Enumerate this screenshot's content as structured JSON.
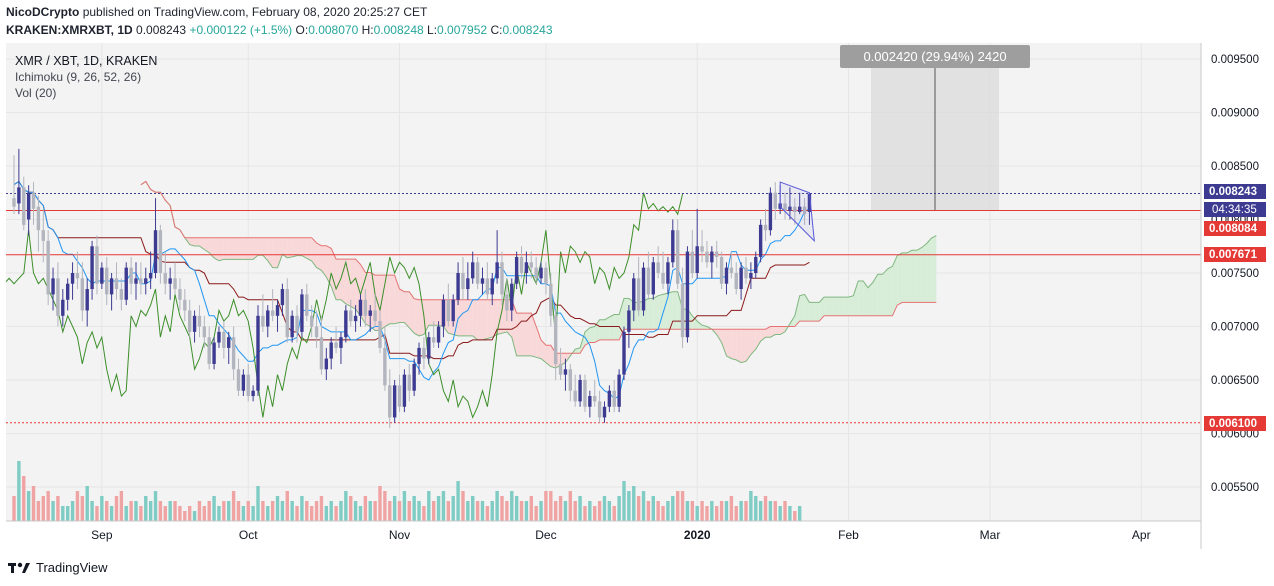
{
  "header": {
    "author": "NicoDCrypto",
    "published": "published on TradingView.com, February 08, 2020 20:25:27 CET",
    "symbol": "KRAKEN:XMRXBT, 1D",
    "last": "0.008243",
    "change": "+0.000122 (+1.5%)",
    "o_label": "O:",
    "o": "0.008070",
    "h_label": "H:",
    "h": "0.008248",
    "l_label": "L:",
    "l": "0.007952",
    "c_label": "C:",
    "c": "0.008243"
  },
  "legend": {
    "pair": "XMR / XBT, 1D, KRAKEN",
    "ichimoku": "Ichimoku (9, 26, 52, 26)",
    "vol": "Vol (20)"
  },
  "measure": {
    "label": "0.002420 (29.94%) 2420"
  },
  "price_labels": {
    "last": "0.008243",
    "countdown": "04:34:35",
    "level1": "0.008084",
    "level2": "0.007671",
    "level3": "0.006100"
  },
  "footer": {
    "brand": "TradingView"
  },
  "colors": {
    "up": "#3d3b91",
    "down": "#b2b5be",
    "vol_up": "#7fccc4",
    "vol_down": "#f0a3a3",
    "cloud_green": "#d8edd8",
    "cloud_red": "#f8d8d8",
    "level": "#e53935",
    "conv": "#2196f3",
    "base": "#8b1a1a",
    "lag": "#3c8e2a"
  },
  "chart_data": {
    "type": "candlestick",
    "title": "XMR / XBT, 1D, KRAKEN",
    "x_ticks": [
      "Sep",
      "Oct",
      "Nov",
      "Dec",
      "2020",
      "Feb",
      "Mar",
      "Apr"
    ],
    "y_ticks": [
      "0.009500",
      "0.009000",
      "0.008500",
      "0.008000",
      "0.007500",
      "0.007000",
      "0.006500",
      "0.006000",
      "0.005500"
    ],
    "ylim": [
      0.0052,
      0.0098
    ],
    "start_date": "2019-08-14",
    "candles": [
      [
        0.0082,
        0.0086,
        0.00805,
        0.00812
      ],
      [
        0.00815,
        0.00866,
        0.00805,
        0.0083
      ],
      [
        0.0083,
        0.0084,
        0.0079,
        0.00795
      ],
      [
        0.008,
        0.00832,
        0.00785,
        0.00825
      ],
      [
        0.00825,
        0.00835,
        0.00795,
        0.0081
      ],
      [
        0.00812,
        0.00822,
        0.0077,
        0.0079
      ],
      [
        0.0079,
        0.0081,
        0.0076,
        0.0078
      ],
      [
        0.0078,
        0.0079,
        0.0072,
        0.0073
      ],
      [
        0.0073,
        0.00755,
        0.00715,
        0.00745
      ],
      [
        0.00745,
        0.0076,
        0.007,
        0.0071
      ],
      [
        0.0071,
        0.00735,
        0.007,
        0.00725
      ],
      [
        0.00725,
        0.00745,
        0.00715,
        0.0074
      ],
      [
        0.0074,
        0.0076,
        0.00725,
        0.0075
      ],
      [
        0.0075,
        0.0077,
        0.00735,
        0.00745
      ],
      [
        0.00745,
        0.0076,
        0.00705,
        0.00715
      ],
      [
        0.00715,
        0.00745,
        0.007,
        0.00735
      ],
      [
        0.00735,
        0.0078,
        0.00725,
        0.00775
      ],
      [
        0.00775,
        0.00785,
        0.0073,
        0.0074
      ],
      [
        0.0074,
        0.0076,
        0.00735,
        0.00755
      ],
      [
        0.00755,
        0.00765,
        0.0072,
        0.0073
      ],
      [
        0.0073,
        0.0075,
        0.00715,
        0.00745
      ],
      [
        0.00745,
        0.0076,
        0.00725,
        0.00735
      ],
      [
        0.00735,
        0.00745,
        0.00715,
        0.00725
      ],
      [
        0.00725,
        0.0076,
        0.0072,
        0.00755
      ],
      [
        0.00755,
        0.00765,
        0.0073,
        0.0074
      ],
      [
        0.0074,
        0.0076,
        0.00725,
        0.00745
      ],
      [
        0.00745,
        0.0076,
        0.0073,
        0.0074
      ],
      [
        0.0074,
        0.00755,
        0.0073,
        0.00745
      ],
      [
        0.00745,
        0.0077,
        0.00735,
        0.0075
      ],
      [
        0.0075,
        0.0082,
        0.00745,
        0.0079
      ],
      [
        0.0079,
        0.00795,
        0.0074,
        0.0075
      ],
      [
        0.0075,
        0.0077,
        0.0073,
        0.0074
      ],
      [
        0.0074,
        0.00755,
        0.00725,
        0.00745
      ],
      [
        0.00745,
        0.0076,
        0.0073,
        0.00735
      ],
      [
        0.00735,
        0.00745,
        0.00715,
        0.00725
      ],
      [
        0.00725,
        0.00735,
        0.00705,
        0.00715
      ],
      [
        0.00715,
        0.00725,
        0.0069,
        0.00695
      ],
      [
        0.00695,
        0.00715,
        0.00685,
        0.0071
      ],
      [
        0.0071,
        0.0072,
        0.0069,
        0.007
      ],
      [
        0.007,
        0.0071,
        0.0068,
        0.0069
      ],
      [
        0.0069,
        0.007,
        0.0066,
        0.00665
      ],
      [
        0.00665,
        0.0069,
        0.0066,
        0.00685
      ],
      [
        0.00685,
        0.007,
        0.0068,
        0.00695
      ],
      [
        0.00695,
        0.00705,
        0.0067,
        0.0068
      ],
      [
        0.0068,
        0.00695,
        0.00665,
        0.0069
      ],
      [
        0.0069,
        0.007,
        0.0065,
        0.0066
      ],
      [
        0.0066,
        0.0067,
        0.00635,
        0.0064
      ],
      [
        0.0064,
        0.0066,
        0.00635,
        0.00655
      ],
      [
        0.00655,
        0.00665,
        0.0063,
        0.00635
      ],
      [
        0.00635,
        0.00645,
        0.0063,
        0.0064
      ],
      [
        0.0064,
        0.0072,
        0.00635,
        0.0071
      ],
      [
        0.0071,
        0.0073,
        0.00695,
        0.007
      ],
      [
        0.007,
        0.0072,
        0.0069,
        0.00715
      ],
      [
        0.00715,
        0.00735,
        0.00705,
        0.0071
      ],
      [
        0.0071,
        0.00725,
        0.00695,
        0.0072
      ],
      [
        0.0072,
        0.0074,
        0.0071,
        0.00735
      ],
      [
        0.00735,
        0.00745,
        0.00685,
        0.0069
      ],
      [
        0.0069,
        0.00715,
        0.00685,
        0.0071
      ],
      [
        0.0071,
        0.0072,
        0.00685,
        0.00695
      ],
      [
        0.00695,
        0.00735,
        0.0069,
        0.0073
      ],
      [
        0.0073,
        0.0074,
        0.00705,
        0.0071
      ],
      [
        0.0071,
        0.0072,
        0.0069,
        0.007
      ],
      [
        0.007,
        0.00715,
        0.0068,
        0.0069
      ],
      [
        0.0069,
        0.0071,
        0.00655,
        0.0066
      ],
      [
        0.0066,
        0.0068,
        0.0065,
        0.0067
      ],
      [
        0.0067,
        0.0069,
        0.0066,
        0.00685
      ],
      [
        0.00685,
        0.007,
        0.00675,
        0.0068
      ],
      [
        0.0068,
        0.00695,
        0.00665,
        0.0069
      ],
      [
        0.0069,
        0.0072,
        0.00685,
        0.00715
      ],
      [
        0.00715,
        0.00725,
        0.007,
        0.00705
      ],
      [
        0.00705,
        0.0072,
        0.00695,
        0.0071
      ],
      [
        0.0071,
        0.0073,
        0.007,
        0.00725
      ],
      [
        0.00725,
        0.00735,
        0.007,
        0.0071
      ],
      [
        0.0071,
        0.0072,
        0.00695,
        0.00715
      ],
      [
        0.00715,
        0.0073,
        0.007,
        0.00705
      ],
      [
        0.00705,
        0.00715,
        0.00675,
        0.0068
      ],
      [
        0.0068,
        0.007,
        0.0064,
        0.00645
      ],
      [
        0.00645,
        0.0066,
        0.00605,
        0.00615
      ],
      [
        0.00615,
        0.0065,
        0.0061,
        0.00645
      ],
      [
        0.00645,
        0.00655,
        0.0062,
        0.00625
      ],
      [
        0.00625,
        0.0066,
        0.0062,
        0.00655
      ],
      [
        0.00655,
        0.00665,
        0.0063,
        0.0064
      ],
      [
        0.0064,
        0.0067,
        0.00635,
        0.00665
      ],
      [
        0.00665,
        0.00685,
        0.00655,
        0.0068
      ],
      [
        0.0068,
        0.0069,
        0.0066,
        0.0067
      ],
      [
        0.0067,
        0.00695,
        0.00665,
        0.0069
      ],
      [
        0.0069,
        0.00705,
        0.0068,
        0.00685
      ],
      [
        0.00685,
        0.00705,
        0.0068,
        0.007
      ],
      [
        0.007,
        0.0073,
        0.0069,
        0.00725
      ],
      [
        0.00725,
        0.0074,
        0.007,
        0.00705
      ],
      [
        0.00705,
        0.0073,
        0.007,
        0.00725
      ],
      [
        0.00725,
        0.0076,
        0.0072,
        0.0075
      ],
      [
        0.0075,
        0.00765,
        0.00725,
        0.00735
      ],
      [
        0.00735,
        0.0076,
        0.00725,
        0.00745
      ],
      [
        0.00745,
        0.0077,
        0.0074,
        0.0076
      ],
      [
        0.0076,
        0.00765,
        0.00735,
        0.0074
      ],
      [
        0.0074,
        0.00755,
        0.0073,
        0.00745
      ],
      [
        0.00745,
        0.0076,
        0.00725,
        0.0073
      ],
      [
        0.0073,
        0.0075,
        0.0072,
        0.00745
      ],
      [
        0.00745,
        0.0079,
        0.0074,
        0.0076
      ],
      [
        0.0076,
        0.0077,
        0.0072,
        0.0073
      ],
      [
        0.0073,
        0.00745,
        0.00705,
        0.00715
      ],
      [
        0.00715,
        0.00745,
        0.00705,
        0.0074
      ],
      [
        0.0074,
        0.0077,
        0.00735,
        0.00765
      ],
      [
        0.00765,
        0.00775,
        0.00745,
        0.0075
      ],
      [
        0.0075,
        0.0077,
        0.0074,
        0.0076
      ],
      [
        0.0076,
        0.0077,
        0.00745,
        0.00755
      ],
      [
        0.00755,
        0.00765,
        0.0074,
        0.00745
      ],
      [
        0.00745,
        0.0076,
        0.0074,
        0.00755
      ],
      [
        0.00755,
        0.0076,
        0.0073,
        0.0074
      ],
      [
        0.0074,
        0.0075,
        0.007,
        0.0071
      ],
      [
        0.0071,
        0.0072,
        0.0065,
        0.00665
      ],
      [
        0.00665,
        0.0068,
        0.0065,
        0.00655
      ],
      [
        0.00655,
        0.0067,
        0.0064,
        0.0066
      ],
      [
        0.0066,
        0.00665,
        0.0063,
        0.0064
      ],
      [
        0.0064,
        0.00655,
        0.00625,
        0.0063
      ],
      [
        0.0063,
        0.00655,
        0.00625,
        0.0065
      ],
      [
        0.0065,
        0.00655,
        0.0062,
        0.00625
      ],
      [
        0.00625,
        0.0064,
        0.00615,
        0.00635
      ],
      [
        0.00635,
        0.0065,
        0.00625,
        0.0063
      ],
      [
        0.0063,
        0.0064,
        0.0061,
        0.00615
      ],
      [
        0.00615,
        0.0063,
        0.0061,
        0.00625
      ],
      [
        0.00625,
        0.00645,
        0.0062,
        0.0064
      ],
      [
        0.0064,
        0.0065,
        0.0062,
        0.00625
      ],
      [
        0.00625,
        0.0066,
        0.0062,
        0.00655
      ],
      [
        0.00655,
        0.007,
        0.0065,
        0.00695
      ],
      [
        0.00695,
        0.0072,
        0.0068,
        0.00715
      ],
      [
        0.00715,
        0.0075,
        0.00705,
        0.00745
      ],
      [
        0.00745,
        0.00765,
        0.0071,
        0.00715
      ],
      [
        0.00715,
        0.0076,
        0.0071,
        0.00755
      ],
      [
        0.00755,
        0.0077,
        0.00725,
        0.0073
      ],
      [
        0.0073,
        0.00765,
        0.00725,
        0.0076
      ],
      [
        0.0076,
        0.00775,
        0.00745,
        0.0075
      ],
      [
        0.0075,
        0.0077,
        0.00735,
        0.0074
      ],
      [
        0.0074,
        0.00765,
        0.0073,
        0.0076
      ],
      [
        0.0076,
        0.008,
        0.00755,
        0.0079
      ],
      [
        0.0079,
        0.008,
        0.00735,
        0.0074
      ],
      [
        0.0074,
        0.00755,
        0.0068,
        0.0069
      ],
      [
        0.0069,
        0.00775,
        0.00685,
        0.0077
      ],
      [
        0.0077,
        0.0079,
        0.00745,
        0.0075
      ],
      [
        0.0075,
        0.0081,
        0.00745,
        0.00775
      ],
      [
        0.00775,
        0.0079,
        0.0076,
        0.0077
      ],
      [
        0.0077,
        0.0078,
        0.00755,
        0.0076
      ],
      [
        0.0076,
        0.00775,
        0.00745,
        0.0077
      ],
      [
        0.0077,
        0.0078,
        0.00755,
        0.00765
      ],
      [
        0.00765,
        0.0077,
        0.00735,
        0.0074
      ],
      [
        0.0074,
        0.0076,
        0.0073,
        0.00755
      ],
      [
        0.00755,
        0.0077,
        0.00745,
        0.0075
      ],
      [
        0.0075,
        0.0076,
        0.0073,
        0.00735
      ],
      [
        0.00735,
        0.0076,
        0.00725,
        0.00755
      ],
      [
        0.00755,
        0.00765,
        0.0074,
        0.00745
      ],
      [
        0.00745,
        0.0076,
        0.00735,
        0.0075
      ],
      [
        0.0075,
        0.0077,
        0.00745,
        0.00765
      ],
      [
        0.00765,
        0.008,
        0.0076,
        0.00795
      ],
      [
        0.00795,
        0.0081,
        0.0078,
        0.0079
      ],
      [
        0.0079,
        0.0083,
        0.00785,
        0.00825
      ],
      [
        0.00825,
        0.00835,
        0.008,
        0.0081
      ],
      [
        0.0081,
        0.00832,
        0.00805,
        0.00815
      ],
      [
        0.00815,
        0.00825,
        0.008,
        0.00808
      ],
      [
        0.00808,
        0.0083,
        0.008,
        0.00812
      ],
      [
        0.00812,
        0.0082,
        0.00795,
        0.00807
      ],
      [
        0.00807,
        0.00825,
        0.00805,
        0.00812
      ],
      [
        0.00812,
        0.0082,
        0.00795,
        0.00805
      ],
      [
        0.00807,
        0.00825,
        0.00795,
        0.00824
      ]
    ],
    "volume": [
      0.25,
      0.6,
      0.45,
      0.3,
      0.35,
      0.2,
      0.25,
      0.3,
      0.2,
      0.25,
      0.15,
      0.15,
      0.2,
      0.3,
      0.25,
      0.35,
      0.2,
      0.15,
      0.25,
      0.2,
      0.15,
      0.25,
      0.3,
      0.15,
      0.2,
      0.2,
      0.15,
      0.25,
      0.2,
      0.3,
      0.2,
      0.15,
      0.2,
      0.2,
      0.15,
      0.1,
      0.15,
      0.1,
      0.2,
      0.15,
      0.2,
      0.25,
      0.15,
      0.2,
      0.2,
      0.3,
      0.2,
      0.15,
      0.2,
      0.15,
      0.35,
      0.2,
      0.15,
      0.2,
      0.25,
      0.2,
      0.3,
      0.2,
      0.15,
      0.25,
      0.2,
      0.15,
      0.2,
      0.25,
      0.15,
      0.2,
      0.15,
      0.2,
      0.3,
      0.25,
      0.2,
      0.15,
      0.25,
      0.2,
      0.2,
      0.35,
      0.3,
      0.2,
      0.25,
      0.2,
      0.3,
      0.2,
      0.25,
      0.2,
      0.15,
      0.3,
      0.2,
      0.25,
      0.3,
      0.2,
      0.25,
      0.4,
      0.3,
      0.2,
      0.25,
      0.2,
      0.2,
      0.15,
      0.2,
      0.3,
      0.25,
      0.2,
      0.3,
      0.25,
      0.2,
      0.2,
      0.25,
      0.15,
      0.2,
      0.3,
      0.3,
      0.2,
      0.25,
      0.2,
      0.3,
      0.2,
      0.25,
      0.15,
      0.2,
      0.15,
      0.2,
      0.25,
      0.2,
      0.15,
      0.25,
      0.4,
      0.3,
      0.35,
      0.25,
      0.3,
      0.2,
      0.25,
      0.2,
      0.15,
      0.2,
      0.25,
      0.3,
      0.3,
      0.2,
      0.2,
      0.15,
      0.2,
      0.15,
      0.2,
      0.15,
      0.2,
      0.2,
      0.25,
      0.15,
      0.2,
      0.2,
      0.3,
      0.25,
      0.2,
      0.25,
      0.2,
      0.2,
      0.15,
      0.2,
      0.15,
      0.1,
      0.15
    ],
    "horizontal_levels": [
      0.008084,
      0.007671,
      0.0061
    ],
    "last_price": 0.008243
  }
}
